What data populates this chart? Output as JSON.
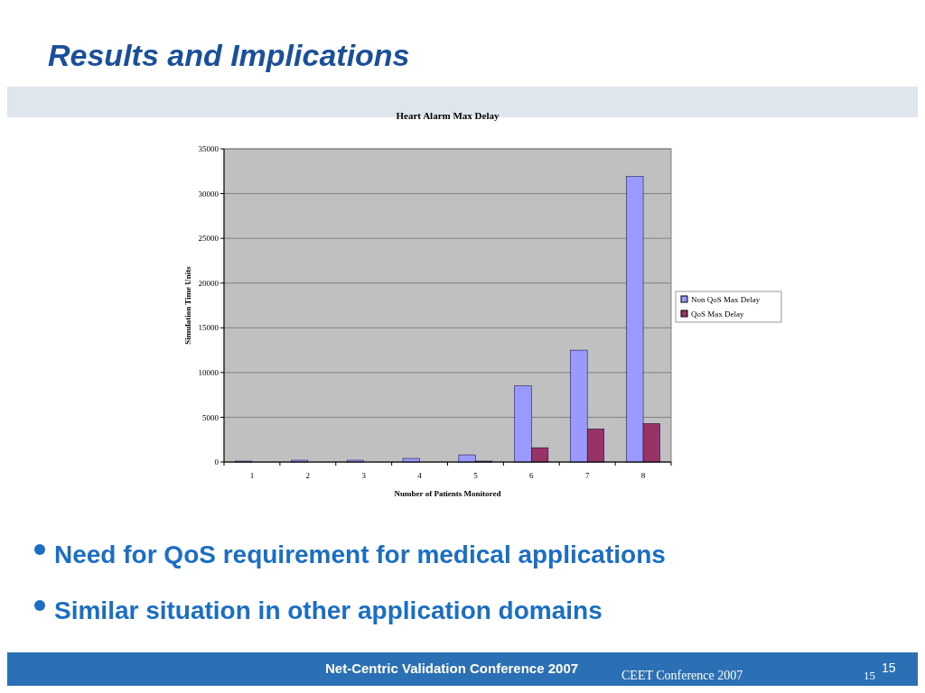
{
  "chart_data": {
    "type": "bar",
    "title": "Heart Alarm Max Delay",
    "xlabel": "Number of Patients Monitored",
    "ylabel": "Simulation Time Units",
    "categories": [
      "1",
      "2",
      "3",
      "4",
      "5",
      "6",
      "7",
      "8"
    ],
    "series": [
      {
        "name": "Non QoS Max Delay",
        "color": "#9999ff",
        "values": [
          100,
          200,
          200,
          400,
          800,
          8500,
          12500,
          31900
        ]
      },
      {
        "name": "QoS Max Delay",
        "color": "#993366",
        "values": [
          0,
          0,
          0,
          0,
          100,
          1600,
          3700,
          4300
        ]
      }
    ],
    "ylim": [
      0,
      35000
    ],
    "yticks": [
      0,
      5000,
      10000,
      15000,
      20000,
      25000,
      30000,
      35000
    ],
    "grid": "y",
    "legend": "right",
    "annotations": [
      "Results and Implications",
      "Need for QoS requirement for medical applications",
      "Similar situation in other application domains",
      "Net-Centric Validation Conference 2007",
      "CEET Conference 2007",
      "15",
      "15"
    ]
  }
}
